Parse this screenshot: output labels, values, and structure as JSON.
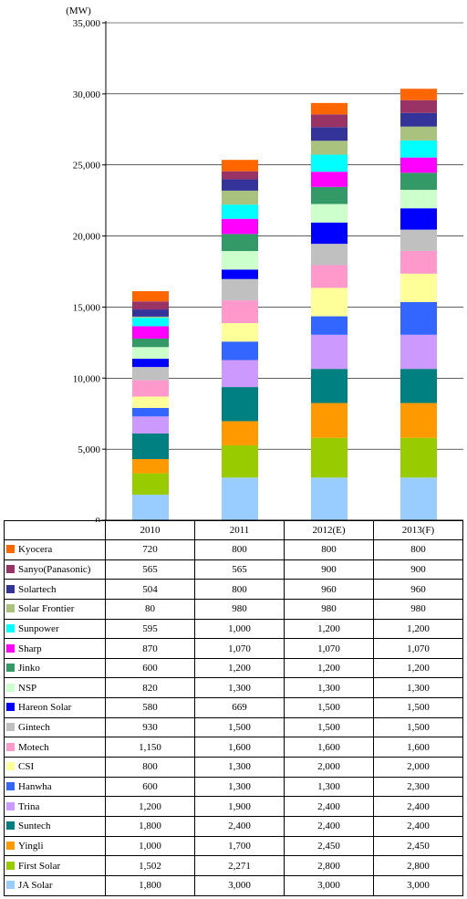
{
  "chart_data": {
    "type": "bar",
    "stacked": true,
    "unit_label": "(MW)",
    "categories": [
      "2010",
      "2011",
      "2012(E)",
      "2013(F)"
    ],
    "ylim": [
      0,
      35000
    ],
    "yticks": [
      "0",
      "5,000",
      "10,000",
      "15,000",
      "20,000",
      "25,000",
      "30,000",
      "35,000"
    ],
    "grid": "horizontal",
    "series": [
      {
        "name": "JA Solar",
        "color": "#99CCFF",
        "values": [
          1800,
          3000,
          3000,
          3000
        ],
        "labels": [
          "1,800",
          "3,000",
          "3,000",
          "3,000"
        ]
      },
      {
        "name": "First Solar",
        "color": "#99CC00",
        "values": [
          1502,
          2271,
          2800,
          2800
        ],
        "labels": [
          "1,502",
          "2,271",
          "2,800",
          "2,800"
        ]
      },
      {
        "name": "Yingli",
        "color": "#FF9900",
        "values": [
          1000,
          1700,
          2450,
          2450
        ],
        "labels": [
          "1,000",
          "1,700",
          "2,450",
          "2,450"
        ]
      },
      {
        "name": "Suntech",
        "color": "#008080",
        "values": [
          1800,
          2400,
          2400,
          2400
        ],
        "labels": [
          "1,800",
          "2,400",
          "2,400",
          "2,400"
        ]
      },
      {
        "name": "Trina",
        "color": "#CC99FF",
        "values": [
          1200,
          1900,
          2400,
          2400
        ],
        "labels": [
          "1,200",
          "1,900",
          "2,400",
          "2,400"
        ]
      },
      {
        "name": "Hanwha",
        "color": "#3366FF",
        "values": [
          600,
          1300,
          1300,
          2300
        ],
        "labels": [
          "600",
          "1,300",
          "1,300",
          "2,300"
        ]
      },
      {
        "name": "CSI",
        "color": "#FFFF99",
        "values": [
          800,
          1300,
          2000,
          2000
        ],
        "labels": [
          "800",
          "1,300",
          "2,000",
          "2,000"
        ]
      },
      {
        "name": "Motech",
        "color": "#FF99CC",
        "values": [
          1150,
          1600,
          1600,
          1600
        ],
        "labels": [
          "1,150",
          "1,600",
          "1,600",
          "1,600"
        ]
      },
      {
        "name": "Gintech",
        "color": "#C0C0C0",
        "values": [
          930,
          1500,
          1500,
          1500
        ],
        "labels": [
          "930",
          "1,500",
          "1,500",
          "1,500"
        ]
      },
      {
        "name": "Hareon Solar",
        "color": "#0000FF",
        "values": [
          580,
          669,
          1500,
          1500
        ],
        "labels": [
          "580",
          "669",
          "1,500",
          "1,500"
        ]
      },
      {
        "name": "NSP",
        "color": "#CCFFCC",
        "values": [
          820,
          1300,
          1300,
          1300
        ],
        "labels": [
          "820",
          "1,300",
          "1,300",
          "1,300"
        ]
      },
      {
        "name": "Jinko",
        "color": "#339966",
        "values": [
          600,
          1200,
          1200,
          1200
        ],
        "labels": [
          "600",
          "1,200",
          "1,200",
          "1,200"
        ]
      },
      {
        "name": "Sharp",
        "color": "#FF00FF",
        "values": [
          870,
          1070,
          1070,
          1070
        ],
        "labels": [
          "870",
          "1,070",
          "1,070",
          "1,070"
        ]
      },
      {
        "name": "Sunpower",
        "color": "#00FFFF",
        "values": [
          595,
          1000,
          1200,
          1200
        ],
        "labels": [
          "595",
          "1,000",
          "1,200",
          "1,200"
        ]
      },
      {
        "name": "Solar Frontier",
        "color": "#A9C37F",
        "values": [
          80,
          980,
          980,
          980
        ],
        "labels": [
          "80",
          "980",
          "980",
          "980"
        ]
      },
      {
        "name": "Solartech",
        "color": "#333399",
        "values": [
          504,
          800,
          960,
          960
        ],
        "labels": [
          "504",
          "800",
          "960",
          "960"
        ]
      },
      {
        "name": "Sanyo(Panasonic)",
        "color": "#993366",
        "values": [
          565,
          565,
          900,
          900
        ],
        "labels": [
          "565",
          "565",
          "900",
          "900"
        ]
      },
      {
        "name": "Kyocera",
        "color": "#FF6600",
        "values": [
          720,
          800,
          800,
          800
        ],
        "labels": [
          "720",
          "800",
          "800",
          "800"
        ]
      }
    ]
  }
}
